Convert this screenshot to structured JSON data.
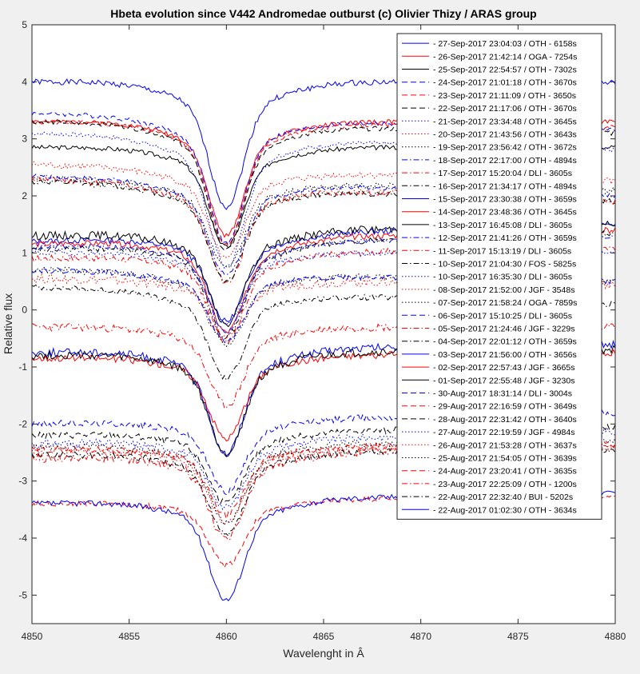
{
  "chart_data": {
    "type": "line",
    "title": "Hbeta evolution since V442 Andromedae outburst (c) Olivier Thizy / ARAS group",
    "xlabel": "Wavelenght in Â",
    "ylabel": "Relative flux",
    "xlim": [
      4850,
      4880
    ],
    "ylim": [
      -5.5,
      5
    ],
    "xticks": [
      4850,
      4855,
      4860,
      4865,
      4870,
      4875,
      4880
    ],
    "xtick_labels": [
      "4850",
      "4855",
      "4860",
      "4865",
      "4870",
      "4875",
      "4880"
    ],
    "yticks": [
      -5,
      -4,
      -3,
      -2,
      -1,
      0,
      1,
      2,
      3,
      4,
      5
    ],
    "ytick_labels": [
      "-5",
      "-4",
      "-3",
      "-2",
      "-1",
      "0",
      "1",
      "2",
      "3",
      "4",
      "5"
    ],
    "legend_position": "top-right",
    "colors": {
      "blue": "#0000ff",
      "red": "#ff0000",
      "black": "#000000"
    },
    "series": [
      {
        "name": "27-Sep-2017 23:04:03 / OTH - 6158s",
        "color": "blue",
        "style": "solid",
        "offset": 4.0,
        "depth": 1.75,
        "width": 0.85,
        "tilt": 0.0,
        "noise": 0.05
      },
      {
        "name": "26-Sep-2017 21:42:14 / OGA - 7254s",
        "color": "red",
        "style": "solid",
        "offset": 3.3,
        "depth": 1.6,
        "width": 0.85,
        "tilt": 0.0,
        "noise": 0.04
      },
      {
        "name": "25-Sep-2017 22:54:57 / OTH - 7302s",
        "color": "black",
        "style": "solid",
        "offset": 2.85,
        "depth": 1.4,
        "width": 0.85,
        "tilt": 0.0,
        "noise": 0.04
      },
      {
        "name": "24-Sep-2017 21:01:18 / OTH - 3670s",
        "color": "blue",
        "style": "dashed",
        "offset": 3.45,
        "depth": 1.75,
        "width": 0.85,
        "tilt": -0.3,
        "noise": 0.04
      },
      {
        "name": "23-Sep-2017 21:11:09 / OTH - 3650s",
        "color": "red",
        "style": "dashed",
        "offset": 3.3,
        "depth": 1.7,
        "width": 0.85,
        "tilt": -0.1,
        "noise": 0.04
      },
      {
        "name": "22-Sep-2017 21:17:06 / OTH - 3670s",
        "color": "black",
        "style": "dashed",
        "offset": 3.3,
        "depth": 1.75,
        "width": 0.85,
        "tilt": -0.2,
        "noise": 0.04
      },
      {
        "name": "21-Sep-2017 23:34:48 / OTH - 3645s",
        "color": "blue",
        "style": "dotted",
        "offset": 3.1,
        "depth": 1.8,
        "width": 0.85,
        "tilt": -0.3,
        "noise": 0.04
      },
      {
        "name": "20-Sep-2017 21:43:56 / OTH - 3643s",
        "color": "red",
        "style": "dotted",
        "offset": 2.55,
        "depth": 1.25,
        "width": 0.85,
        "tilt": -0.3,
        "noise": 0.06
      },
      {
        "name": "19-Sep-2017 23:56:42 / OTH - 3672s",
        "color": "black",
        "style": "dotted",
        "offset": 2.3,
        "depth": 1.2,
        "width": 0.85,
        "tilt": -0.2,
        "noise": 0.05
      },
      {
        "name": "18-Sep-2017 22:17:00 / OTH - 4894s",
        "color": "blue",
        "style": "dashdot",
        "offset": 2.35,
        "depth": 1.3,
        "width": 0.85,
        "tilt": -0.35,
        "noise": 0.04
      },
      {
        "name": "17-Sep-2017 15:20:04 / DLI - 3605s",
        "color": "red",
        "style": "dashdot",
        "offset": 2.3,
        "depth": 1.35,
        "width": 0.85,
        "tilt": -0.4,
        "noise": 0.06
      },
      {
        "name": "16-Sep-2017 21:34:17 / OTH - 4894s",
        "color": "black",
        "style": "dashdot",
        "offset": 2.25,
        "depth": 1.3,
        "width": 0.85,
        "tilt": -0.35,
        "noise": 0.05
      },
      {
        "name": "15-Sep-2017 23:30:38 / OTH - 3659s",
        "color": "blue",
        "style": "solid",
        "offset": 1.2,
        "depth": 1.2,
        "width": 0.85,
        "tilt": 0.3,
        "noise": 0.05
      },
      {
        "name": "14-Sep-2017 23:48:36 / OTH - 3645s",
        "color": "red",
        "style": "solid",
        "offset": 1.15,
        "depth": 1.3,
        "width": 0.85,
        "tilt": 0.25,
        "noise": 0.05
      },
      {
        "name": "13-Sep-2017 16:45:08 / DLI - 3605s",
        "color": "black",
        "style": "solid",
        "offset": 1.3,
        "depth": 1.3,
        "width": 0.85,
        "tilt": 0.2,
        "noise": 0.07
      },
      {
        "name": "12-Sep-2017 21:41:26 / OTH - 3659s",
        "color": "blue",
        "style": "dashdot",
        "offset": 1.1,
        "depth": 1.25,
        "width": 0.85,
        "tilt": 0.2,
        "noise": 0.04
      },
      {
        "name": "11-Sep-2017 15:13:19 / DLI - 3605s",
        "color": "red",
        "style": "dashdot",
        "offset": 0.9,
        "depth": 1.2,
        "width": 0.85,
        "tilt": 0.2,
        "noise": 0.06
      },
      {
        "name": "10-Sep-2017 21:04:30 / FOS - 5825s",
        "color": "black",
        "style": "dashdot",
        "offset": 1.05,
        "depth": 1.3,
        "width": 0.85,
        "tilt": 0.3,
        "noise": 0.05
      },
      {
        "name": "10-Sep-2017 16:35:30 / DLI - 3605s",
        "color": "blue",
        "style": "dotted",
        "offset": 1.0,
        "depth": 1.0,
        "width": 0.85,
        "tilt": 0.0,
        "noise": 0.05
      },
      {
        "name": "08-Sep-2017 21:52:00 / JGF - 3548s",
        "color": "red",
        "style": "dotted",
        "offset": 0.55,
        "depth": 0.8,
        "width": 0.85,
        "tilt": -0.1,
        "noise": 0.08
      },
      {
        "name": "07-Sep-2017 21:58:24 / OGA - 7859s",
        "color": "black",
        "style": "dotted",
        "offset": 0.7,
        "depth": 1.0,
        "width": 0.85,
        "tilt": -0.2,
        "noise": 0.06
      },
      {
        "name": "06-Sep-2017 15:10:25 / DLI - 3605s",
        "color": "blue",
        "style": "dashed",
        "offset": 0.7,
        "depth": 0.95,
        "width": 0.85,
        "tilt": -0.2,
        "noise": 0.05
      },
      {
        "name": "05-Sep-2017 21:24:46 / JGF - 3229s",
        "color": "red",
        "style": "dashdot",
        "offset": -0.3,
        "depth": 1.1,
        "width": 0.85,
        "tilt": 0.0,
        "noise": 0.07
      },
      {
        "name": "04-Sep-2017 22:01:12 / OTH - 3659s",
        "color": "black",
        "style": "dashdot",
        "offset": 0.4,
        "depth": 1.2,
        "width": 0.85,
        "tilt": -0.3,
        "noise": 0.05
      },
      {
        "name": "03-Sep-2017 21:56:00 / OTH - 3656s",
        "color": "blue",
        "style": "solid",
        "offset": -0.75,
        "depth": 1.45,
        "width": 0.85,
        "tilt": 0.15,
        "noise": 0.07
      },
      {
        "name": "02-Sep-2017 22:57:43 / JGF - 3665s",
        "color": "red",
        "style": "solid",
        "offset": -0.85,
        "depth": 1.15,
        "width": 0.85,
        "tilt": 0.1,
        "noise": 0.06
      },
      {
        "name": "01-Sep-2017 22:55:48 / JGF - 3230s",
        "color": "black",
        "style": "solid",
        "offset": -0.8,
        "depth": 1.4,
        "width": 0.85,
        "tilt": 0.1,
        "noise": 0.07
      },
      {
        "name": "30-Aug-2017 18:31:14 / DLI - 3004s",
        "color": "blue",
        "style": "dashed",
        "offset": -2.0,
        "depth": 1.0,
        "width": 0.85,
        "tilt": 0.2,
        "noise": 0.06
      },
      {
        "name": "29-Aug-2017 22:16:59 / OTH - 3649s",
        "color": "red",
        "style": "dashed",
        "offset": -2.45,
        "depth": 0.95,
        "width": 0.85,
        "tilt": 0.1,
        "noise": 0.06
      },
      {
        "name": "28-Aug-2017 22:31:42 / OTH - 3640s",
        "color": "black",
        "style": "dashed",
        "offset": -2.2,
        "depth": 1.0,
        "width": 0.85,
        "tilt": 0.15,
        "noise": 0.06
      },
      {
        "name": "27-Aug-2017 22:19:59 / JGF - 4984s",
        "color": "blue",
        "style": "dotted",
        "offset": -2.35,
        "depth": 0.95,
        "width": 0.85,
        "tilt": 0.2,
        "noise": 0.07
      },
      {
        "name": "26-Aug-2017 21:53:28 / OTH - 3637s",
        "color": "red",
        "style": "dotted",
        "offset": -2.45,
        "depth": 1.05,
        "width": 0.85,
        "tilt": 0.05,
        "noise": 0.06
      },
      {
        "name": "25-Aug-2017 21:54:05 / OTH - 3639s",
        "color": "black",
        "style": "dotted",
        "offset": -2.4,
        "depth": 1.1,
        "width": 0.85,
        "tilt": 0.1,
        "noise": 0.06
      },
      {
        "name": "24-Aug-2017 23:20:41 / OTH - 3635s",
        "color": "red",
        "style": "dashed",
        "offset": -3.4,
        "depth": 0.9,
        "width": 0.85,
        "tilt": 0.15,
        "noise": 0.05
      },
      {
        "name": "23-Aug-2017 22:25:09 / OTH - 1200s",
        "color": "red",
        "style": "dashdot",
        "offset": -2.6,
        "depth": 1.2,
        "width": 0.85,
        "tilt": 0.2,
        "noise": 0.08
      },
      {
        "name": "22-Aug-2017 22:32:40 / BUI - 5202s",
        "color": "black",
        "style": "dashdot",
        "offset": -2.55,
        "depth": 1.15,
        "width": 0.85,
        "tilt": 0.1,
        "noise": 0.06
      },
      {
        "name": "22-Aug-2017 01:02:30 / OTH - 3634s",
        "color": "blue",
        "style": "solid",
        "offset": -3.4,
        "depth": 1.4,
        "width": 0.85,
        "tilt": 0.2,
        "noise": 0.05
      }
    ]
  }
}
